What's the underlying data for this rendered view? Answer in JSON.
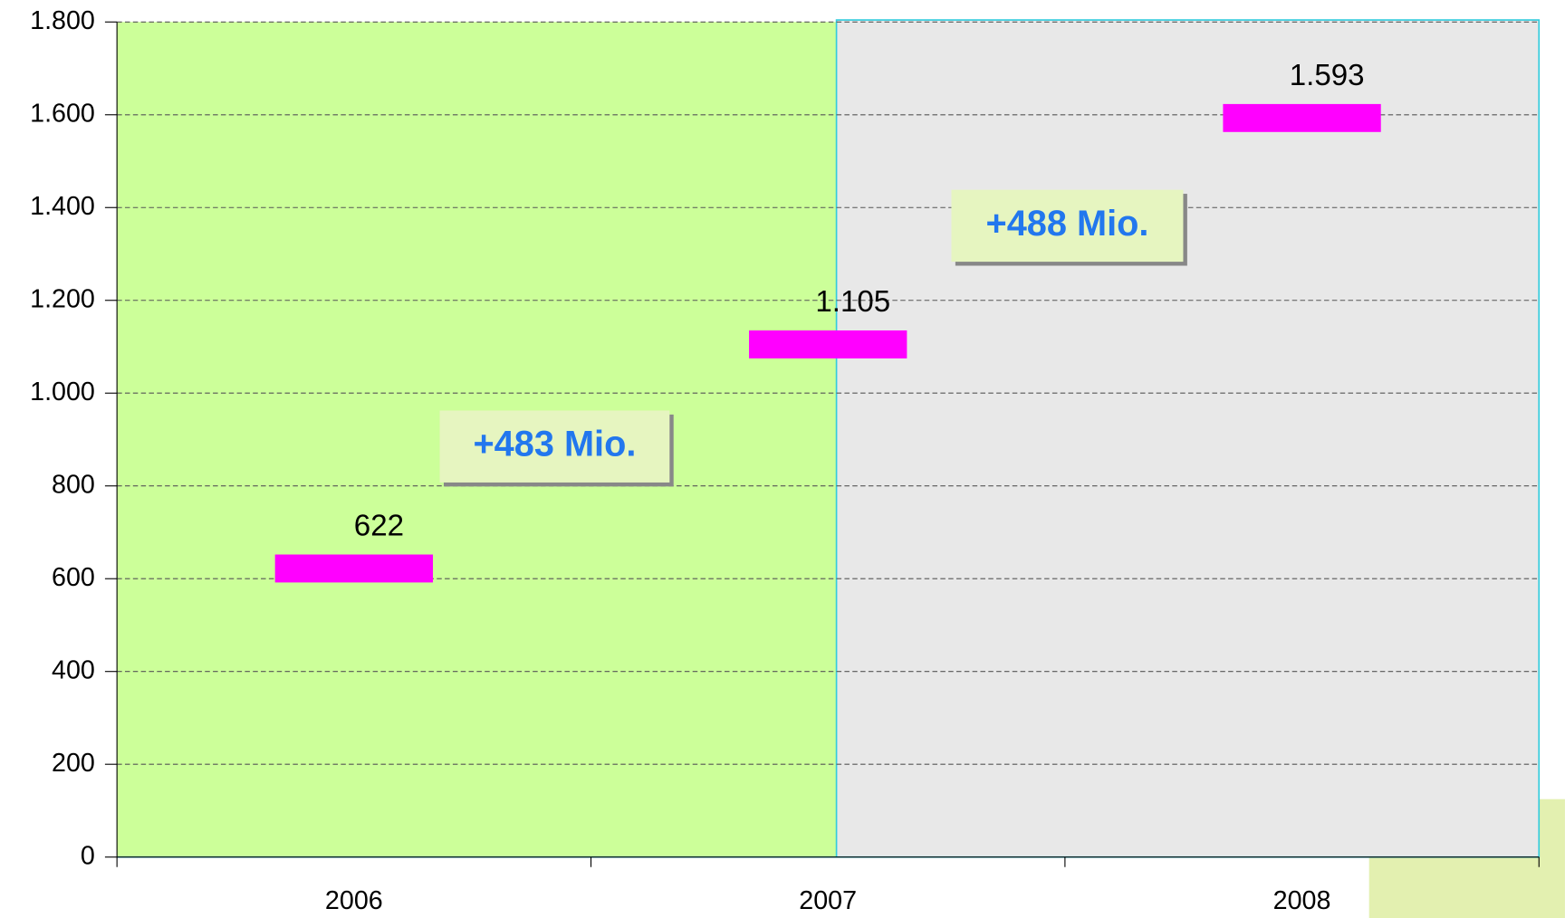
{
  "chart_data": {
    "type": "bar",
    "categories": [
      "2006",
      "2007",
      "2008"
    ],
    "values": [
      622,
      1105,
      1593
    ],
    "value_labels": [
      "622",
      "1.105",
      "1.593"
    ],
    "color": "#ff00ff",
    "ylim": [
      0,
      1800
    ],
    "yticks": [
      0,
      200,
      400,
      600,
      800,
      {
        "value": 1000,
        "label": "1.000"
      },
      {
        "value": 1200,
        "label": "1.200"
      },
      {
        "value": 1400,
        "label": "1.400"
      },
      {
        "value": 1600,
        "label": "1.600"
      },
      {
        "value": 1800,
        "label": "1.800"
      }
    ],
    "grid": true,
    "annotations": [
      "+483 Mio.",
      "+488 Mio."
    ]
  }
}
